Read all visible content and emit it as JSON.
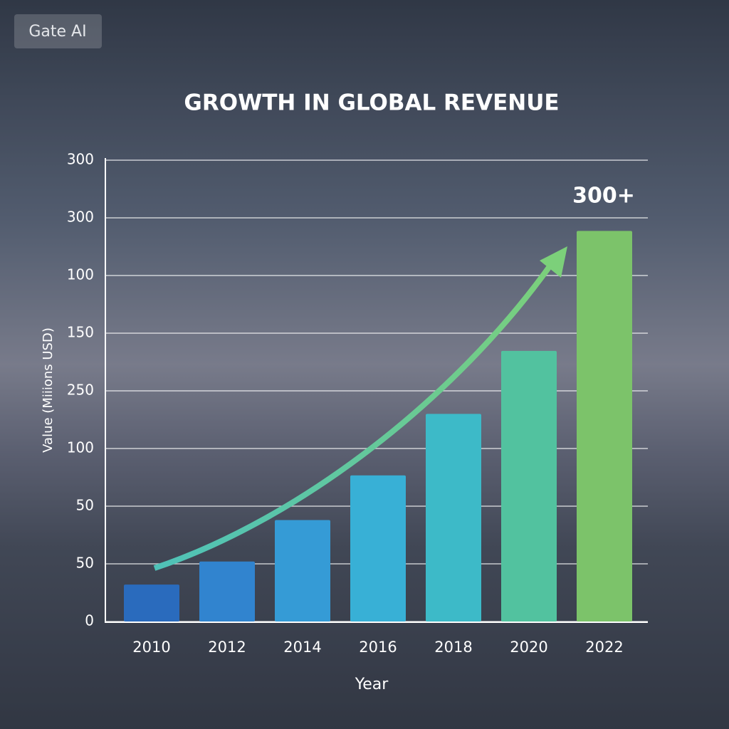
{
  "chart_data": {
    "type": "bar",
    "watermark": "Gate AI",
    "title": "GROWTH IN GLOBAL REVENUE",
    "x_label": "Year",
    "y_label": "Value (Miiions USD)",
    "annotation": "300+",
    "categories": [
      "2010",
      "2012",
      "2014",
      "2016",
      "2018",
      "2020",
      "2022"
    ],
    "values": [
      24,
      39,
      66,
      95,
      135,
      176,
      254
    ],
    "colors": [
      "#2a6bbd",
      "#3184cf",
      "#359bd6",
      "#38b0d6",
      "#3dbac8",
      "#52c29f",
      "#7cc36a"
    ],
    "ylim": [
      0,
      300
    ],
    "yticks": [
      0,
      {
        "value": 37.5,
        "label": "50"
      },
      {
        "value": 75,
        "label": "50"
      },
      {
        "value": 112.5,
        "label": "100"
      },
      {
        "value": 150,
        "label": "250"
      },
      {
        "value": 187.5,
        "label": "150"
      },
      {
        "value": 225,
        "label": "100"
      },
      {
        "value": 262.5,
        "label": "300"
      },
      {
        "value": 300,
        "label": "300"
      }
    ],
    "grid": true
  }
}
